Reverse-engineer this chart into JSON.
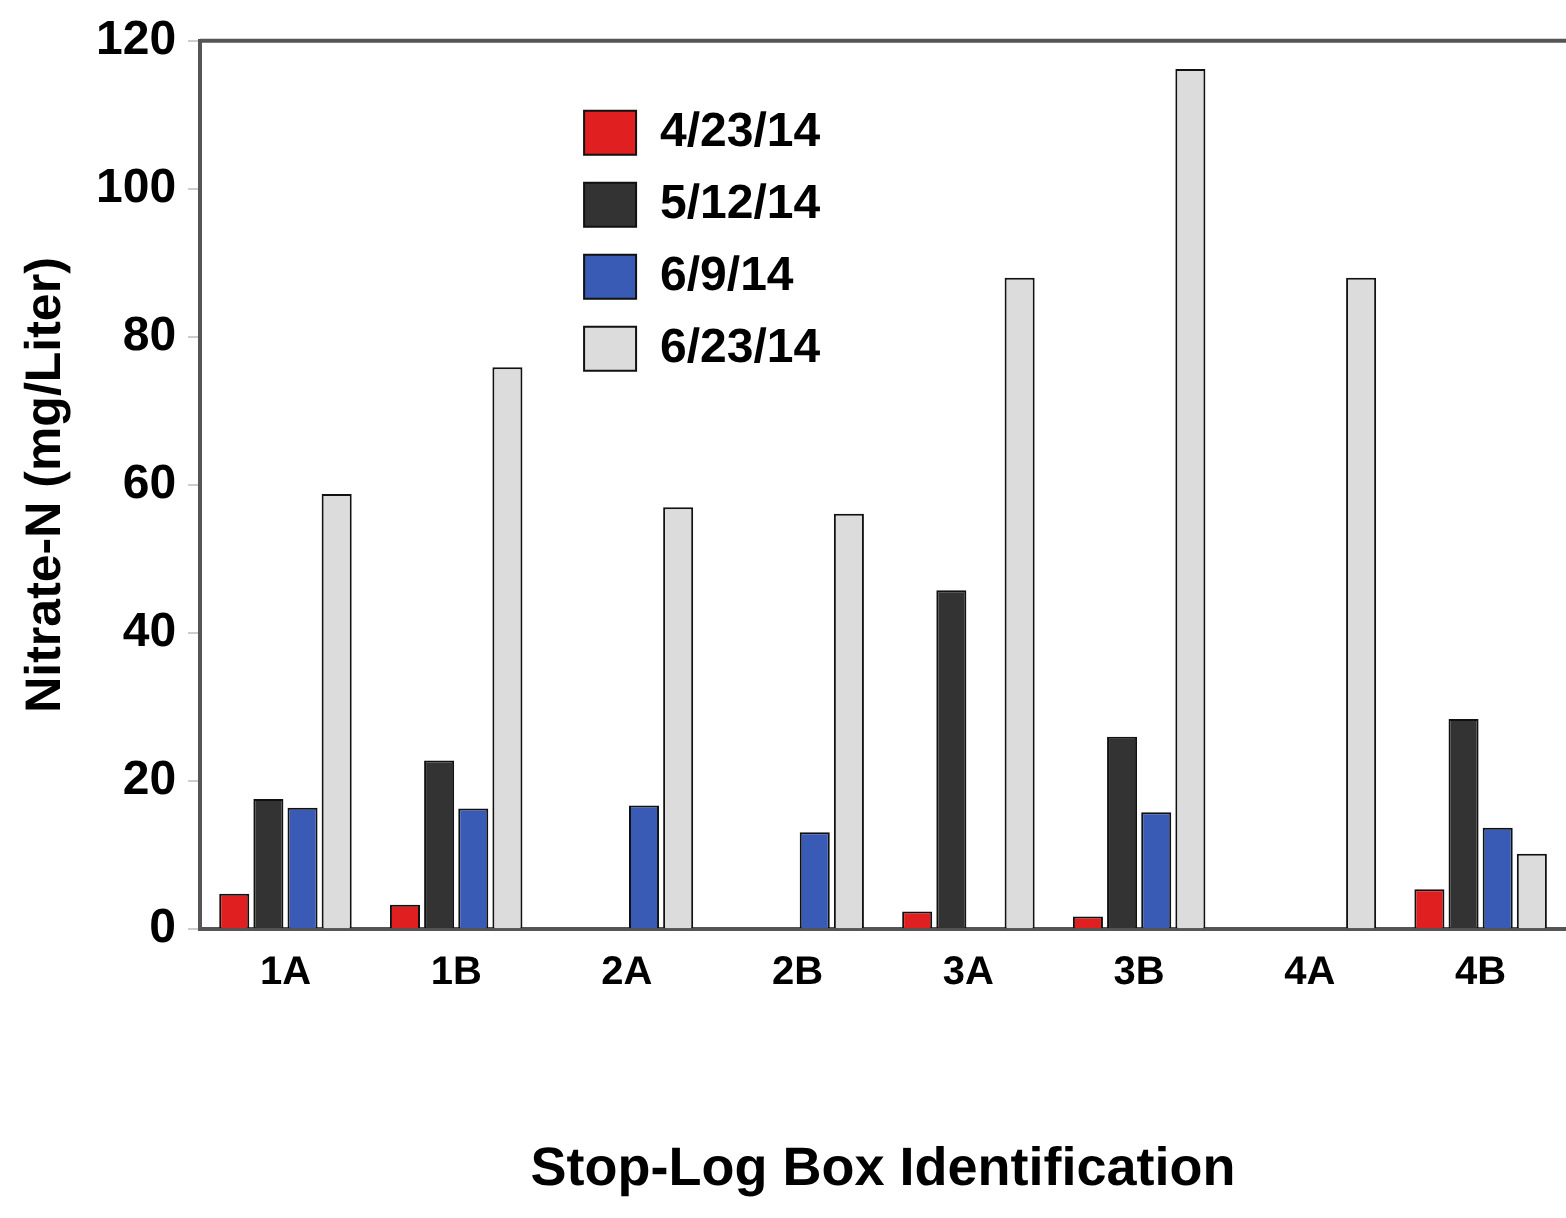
{
  "chart_data": {
    "type": "bar",
    "xlabel": "Stop-Log Box Identification",
    "ylabel": "Nitrate-N (mg/Liter)",
    "categories": [
      "1A",
      "1B",
      "2A",
      "2B",
      "3A",
      "3B",
      "4A",
      "4B"
    ],
    "series": [
      {
        "name": "4/23/14",
        "color": "#e02020",
        "values": [
          4.8,
          3.3,
          null,
          null,
          2.4,
          1.7,
          null,
          5.4
        ]
      },
      {
        "name": "5/12/14",
        "color": "#333333",
        "values": [
          17.6,
          22.8,
          null,
          null,
          45.8,
          26,
          null,
          28.4
        ]
      },
      {
        "name": "6/9/14",
        "color": "#3a5bb5",
        "values": [
          16.4,
          16.3,
          16.7,
          13.1,
          null,
          15.8,
          null,
          13.7
        ]
      },
      {
        "name": "6/23/14",
        "color": "#dcdcdc",
        "values": [
          58.8,
          75.9,
          57,
          56.1,
          88,
          116.2,
          88,
          10.2
        ]
      }
    ],
    "ylim": [
      0,
      120
    ],
    "yticks": [
      0,
      20,
      40,
      60,
      80,
      100,
      120
    ],
    "grid": false,
    "legend": "top"
  }
}
